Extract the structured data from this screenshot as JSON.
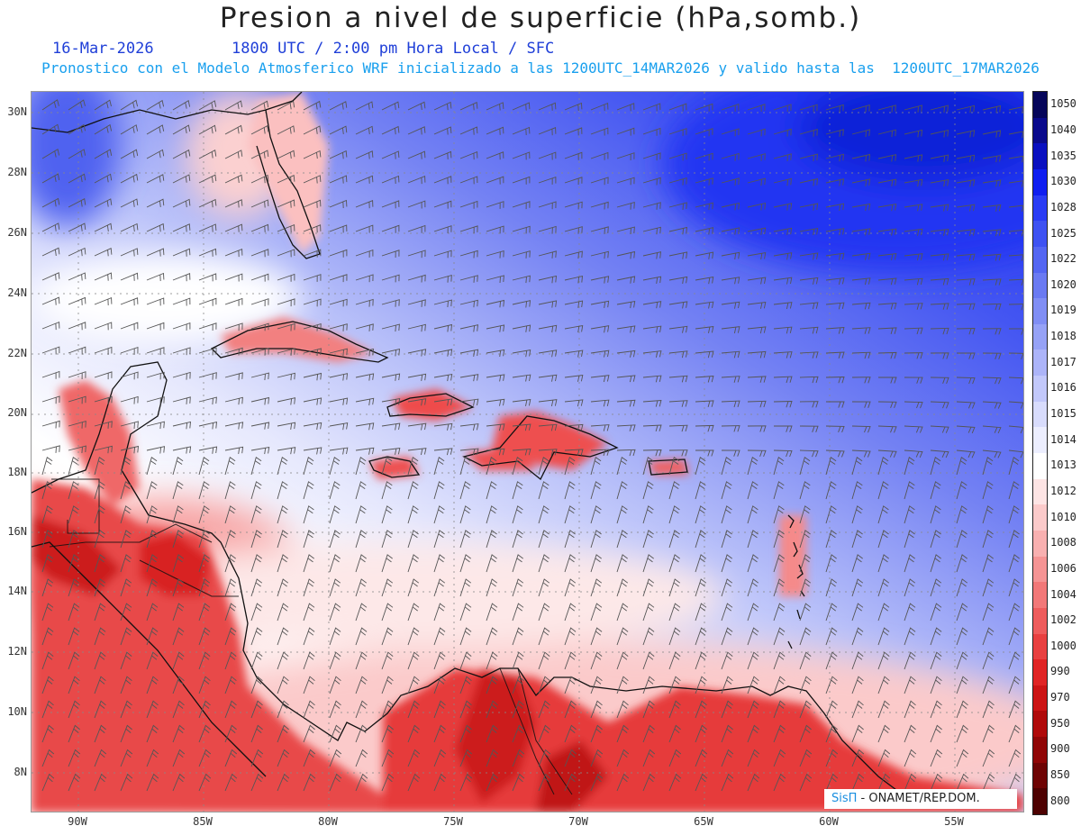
{
  "header": {
    "title": "Presion a nivel de superficie (hPa,somb.)",
    "date": "16-Mar-2026",
    "time_info": "1800 UTC / 2:00 pm Hora Local / SFC",
    "forecast_info": "Pronostico con el Modelo Atmosferico WRF inicializado a las 1200UTC_14MAR2026 y valido hasta las  1200UTC_17MAR2026"
  },
  "map": {
    "lat_labels": [
      "30N",
      "28N",
      "26N",
      "24N",
      "22N",
      "20N",
      "18N",
      "16N",
      "14N",
      "12N",
      "10N",
      "8N"
    ],
    "lon_labels": [
      "90W",
      "85W",
      "80W",
      "75W",
      "70W",
      "65W",
      "60W",
      "55W"
    ],
    "lat_range": [
      7,
      30.7
    ],
    "lon_range": [
      -92.5,
      -53
    ]
  },
  "colorbar": {
    "levels": [
      "1050",
      "1040",
      "1035",
      "1030",
      "1028",
      "1025",
      "1022",
      "1020",
      "1019",
      "1018",
      "1017",
      "1016",
      "1015",
      "1014",
      "1013",
      "1012",
      "1010",
      "1008",
      "1006",
      "1004",
      "1002",
      "1000",
      "990",
      "970",
      "950",
      "900",
      "850",
      "800"
    ],
    "colors": [
      "#06065a",
      "#0a0a8c",
      "#0a10c0",
      "#0f1ef0",
      "#2a3cf4",
      "#3e52f2",
      "#5466f2",
      "#6a7af2",
      "#808ef4",
      "#96a2f6",
      "#acb4f8",
      "#c2c8fa",
      "#d8dcfc",
      "#eceefe",
      "#ffffff",
      "#fde4e4",
      "#fbcaca",
      "#f8b0b0",
      "#f59494",
      "#f27878",
      "#ee5c5c",
      "#e84040",
      "#e02424",
      "#cc1414",
      "#b00a0a",
      "#900606",
      "#6e0404",
      "#4e0202"
    ]
  },
  "credit": {
    "sis": "SisΠ",
    "rest": " - ONAMET/REP.DOM."
  }
}
